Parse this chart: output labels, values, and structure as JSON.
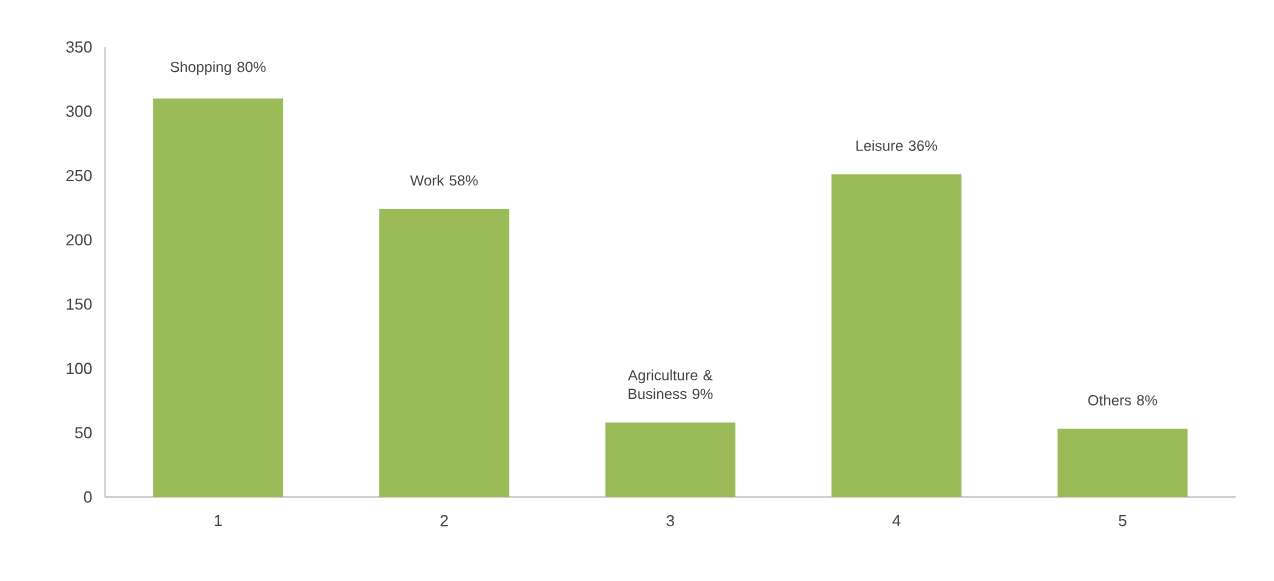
{
  "chart_data": {
    "type": "bar",
    "categories": [
      "1",
      "2",
      "3",
      "4",
      "5"
    ],
    "values": [
      310,
      224,
      58,
      251,
      53
    ],
    "color": "#9bbb59",
    "ylim": [
      0,
      350
    ],
    "yticks": [
      0,
      50,
      100,
      150,
      200,
      250,
      300,
      350
    ],
    "annotations": [
      {
        "text": "Shopping 80%",
        "x": "1",
        "y": 310
      },
      {
        "text": "Work 58%",
        "x": "2",
        "y": 224
      },
      {
        "text": "Agriculture & Business 9%",
        "x": "3",
        "y": 58
      },
      {
        "text": "Leisure 36%",
        "x": "4",
        "y": 251
      },
      {
        "text": "Others 8%",
        "x": "5",
        "y": 53
      }
    ]
  }
}
